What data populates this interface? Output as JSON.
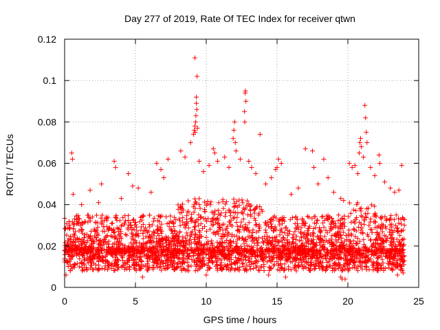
{
  "chart_data": {
    "type": "scatter",
    "title": "Day 277 of 2019, Rate Of TEC Index for receiver qtwn",
    "xlabel": "GPS time / hours",
    "ylabel": "ROTI / TECUs",
    "xlim": [
      0,
      25
    ],
    "ylim": [
      0,
      0.12
    ],
    "xticks": [
      0,
      5,
      10,
      15,
      20,
      25
    ],
    "xtick_labels": [
      "0",
      "5",
      "10",
      "15",
      "20",
      "25"
    ],
    "yticks": [
      0,
      0.02,
      0.04,
      0.06,
      0.08,
      0.1,
      0.12
    ],
    "ytick_labels": [
      "0",
      "0.02",
      "0.04",
      "0.06",
      "0.08",
      "0.1",
      "0.12"
    ],
    "grid": true,
    "marker": "+",
    "series": [
      {
        "name": "ROTI",
        "color": "#ff0000",
        "bulk": {
          "x_range": [
            0,
            24
          ],
          "band_low": 0.008,
          "band_high": 0.035,
          "count": 3200,
          "median": 0.018
        },
        "points": [
          [
            0.5,
            0.065
          ],
          [
            0.55,
            0.062
          ],
          [
            0.6,
            0.045
          ],
          [
            1.2,
            0.04
          ],
          [
            1.8,
            0.047
          ],
          [
            2.4,
            0.041
          ],
          [
            2.6,
            0.05
          ],
          [
            3.5,
            0.061
          ],
          [
            3.6,
            0.058
          ],
          [
            4.0,
            0.043
          ],
          [
            4.5,
            0.055
          ],
          [
            4.8,
            0.049
          ],
          [
            5.2,
            0.048
          ],
          [
            6.1,
            0.046
          ],
          [
            6.5,
            0.06
          ],
          [
            6.8,
            0.057
          ],
          [
            7.0,
            0.053
          ],
          [
            7.3,
            0.062
          ],
          [
            8.2,
            0.066
          ],
          [
            8.5,
            0.063
          ],
          [
            8.9,
            0.07
          ],
          [
            9.1,
            0.074
          ],
          [
            9.15,
            0.076
          ],
          [
            9.2,
            0.078
          ],
          [
            9.22,
            0.075
          ],
          [
            9.25,
            0.08
          ],
          [
            9.27,
            0.083
          ],
          [
            9.3,
            0.089
          ],
          [
            9.3,
            0.092
          ],
          [
            9.33,
            0.086
          ],
          [
            9.35,
            0.102
          ],
          [
            9.2,
            0.111
          ],
          [
            9.38,
            0.077
          ],
          [
            9.5,
            0.061
          ],
          [
            9.8,
            0.056
          ],
          [
            10.2,
            0.059
          ],
          [
            10.5,
            0.067
          ],
          [
            10.6,
            0.065
          ],
          [
            10.8,
            0.061
          ],
          [
            11.3,
            0.063
          ],
          [
            11.6,
            0.058
          ],
          [
            11.9,
            0.072
          ],
          [
            11.95,
            0.076
          ],
          [
            12.0,
            0.08
          ],
          [
            12.05,
            0.07
          ],
          [
            12.1,
            0.066
          ],
          [
            12.4,
            0.062
          ],
          [
            12.7,
            0.085
          ],
          [
            12.72,
            0.08
          ],
          [
            12.75,
            0.094
          ],
          [
            12.77,
            0.095
          ],
          [
            12.8,
            0.09
          ],
          [
            13.0,
            0.061
          ],
          [
            13.2,
            0.058
          ],
          [
            13.5,
            0.055
          ],
          [
            13.8,
            0.074
          ],
          [
            14.2,
            0.05
          ],
          [
            14.6,
            0.053
          ],
          [
            14.9,
            0.057
          ],
          [
            15.0,
            0.058
          ],
          [
            15.1,
            0.062
          ],
          [
            15.3,
            0.06
          ],
          [
            16.0,
            0.045
          ],
          [
            16.5,
            0.048
          ],
          [
            17.0,
            0.067
          ],
          [
            17.5,
            0.066
          ],
          [
            17.6,
            0.058
          ],
          [
            17.9,
            0.05
          ],
          [
            18.3,
            0.062
          ],
          [
            18.6,
            0.053
          ],
          [
            19.0,
            0.046
          ],
          [
            19.5,
            0.043
          ],
          [
            19.7,
            0.042
          ],
          [
            20.1,
            0.06
          ],
          [
            20.3,
            0.058
          ],
          [
            20.5,
            0.059
          ],
          [
            20.7,
            0.055
          ],
          [
            20.8,
            0.065
          ],
          [
            20.85,
            0.07
          ],
          [
            20.9,
            0.072
          ],
          [
            20.95,
            0.068
          ],
          [
            21.1,
            0.063
          ],
          [
            21.2,
            0.088
          ],
          [
            21.25,
            0.082
          ],
          [
            21.3,
            0.075
          ],
          [
            21.35,
            0.07
          ],
          [
            21.6,
            0.058
          ],
          [
            21.9,
            0.054
          ],
          [
            22.2,
            0.064
          ],
          [
            22.25,
            0.06
          ],
          [
            22.6,
            0.051
          ],
          [
            23.0,
            0.048
          ],
          [
            23.3,
            0.046
          ],
          [
            23.6,
            0.047
          ],
          [
            23.8,
            0.059
          ],
          [
            0.1,
            0.006
          ],
          [
            5.5,
            0.005
          ],
          [
            10.0,
            0.006
          ],
          [
            14.4,
            0.006
          ],
          [
            15.6,
            0.005
          ],
          [
            19.5,
            0.005
          ],
          [
            19.6,
            0.004
          ],
          [
            19.8,
            0.004
          ],
          [
            23.5,
            0.006
          ],
          [
            23.9,
            0.007
          ]
        ]
      }
    ]
  }
}
